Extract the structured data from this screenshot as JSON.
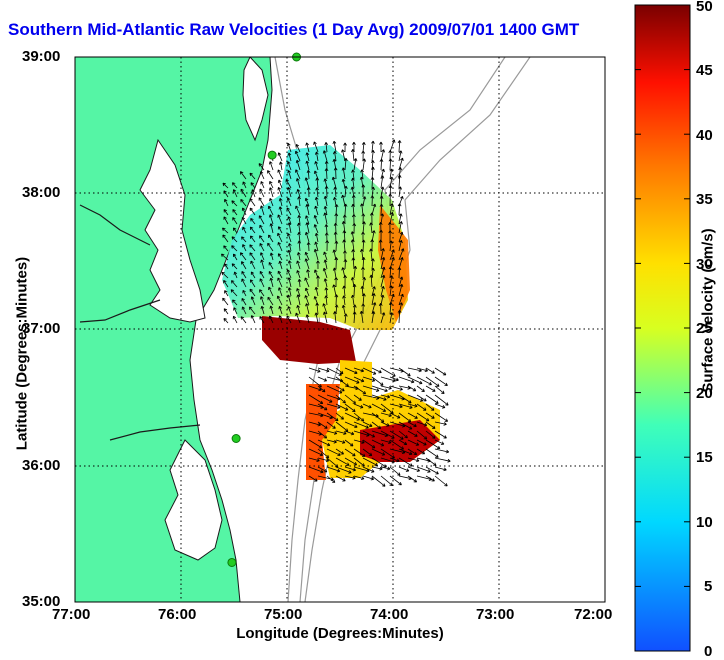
{
  "title": "Southern Mid-Atlantic Raw Velocities (1 Day Avg) 2009/07/01 1400 GMT",
  "axes": {
    "xlabel": "Longitude (Degrees:Minutes)",
    "ylabel": "Latitude (Degrees:Minutes)",
    "x_ticks": [
      "77:00",
      "76:00",
      "75:00",
      "74:00",
      "73:00",
      "72:00"
    ],
    "y_ticks": [
      "39:00",
      "38:00",
      "37:00",
      "36:00",
      "35:00"
    ]
  },
  "colorbar": {
    "label": "Surface Velocity (cm/s)",
    "ticks": [
      "0",
      "5",
      "10",
      "15",
      "20",
      "25",
      "30",
      "35",
      "40",
      "45",
      "50"
    ],
    "min": 0,
    "max": 50
  },
  "colors": {
    "land": "#55f5a5",
    "coast": "#1a1a1a",
    "bathymetry": "#9a9a9a",
    "title": "#0000ee",
    "station": "#22cc22"
  },
  "stations": [
    {
      "lon": 74.91,
      "lat": 39.0
    },
    {
      "lon": 75.14,
      "lat": 38.28
    },
    {
      "lon": 75.48,
      "lat": 36.2
    },
    {
      "lon": 75.52,
      "lat": 35.29
    }
  ]
}
